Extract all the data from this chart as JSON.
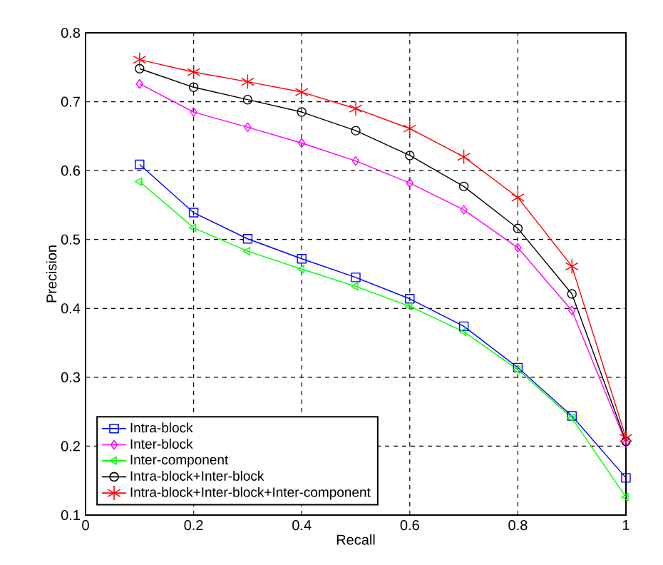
{
  "chart_data": {
    "type": "line",
    "xlabel": "Recall",
    "ylabel": "Precision",
    "x": [
      0.1,
      0.2,
      0.3,
      0.4,
      0.5,
      0.6,
      0.7,
      0.8,
      0.9,
      1.0
    ],
    "series": [
      {
        "name": "Intra-block",
        "color": "#0000ff",
        "marker": "square",
        "values": [
          0.609,
          0.539,
          0.501,
          0.472,
          0.445,
          0.414,
          0.374,
          0.314,
          0.244,
          0.154
        ]
      },
      {
        "name": "Inter-block",
        "color": "#ff00ff",
        "marker": "diamond",
        "values": [
          0.726,
          0.685,
          0.663,
          0.64,
          0.614,
          0.582,
          0.543,
          0.488,
          0.397,
          0.205
        ]
      },
      {
        "name": "Inter-component",
        "color": "#00ff00",
        "marker": "triangle",
        "values": [
          0.584,
          0.517,
          0.483,
          0.457,
          0.432,
          0.403,
          0.366,
          0.311,
          0.241,
          0.126
        ]
      },
      {
        "name": "Intra-block+Inter-block",
        "color": "#000000",
        "marker": "circle",
        "values": [
          0.748,
          0.721,
          0.703,
          0.685,
          0.658,
          0.622,
          0.577,
          0.516,
          0.421,
          0.207
        ]
      },
      {
        "name": "Intra-block+Inter-block+Inter-component",
        "color": "#ff0000",
        "marker": "cross",
        "values": [
          0.761,
          0.743,
          0.729,
          0.714,
          0.69,
          0.661,
          0.62,
          0.561,
          0.461,
          0.212
        ]
      }
    ],
    "xlim": [
      0,
      1
    ],
    "xticks": [
      0,
      0.2,
      0.4,
      0.6,
      0.8,
      1
    ],
    "ylim": [
      0.1,
      0.8
    ],
    "yticks": [
      0.1,
      0.2,
      0.3,
      0.4,
      0.5,
      0.6,
      0.7,
      0.8
    ],
    "grid": true,
    "legend": "bottom left",
    "line_style": "solid"
  }
}
